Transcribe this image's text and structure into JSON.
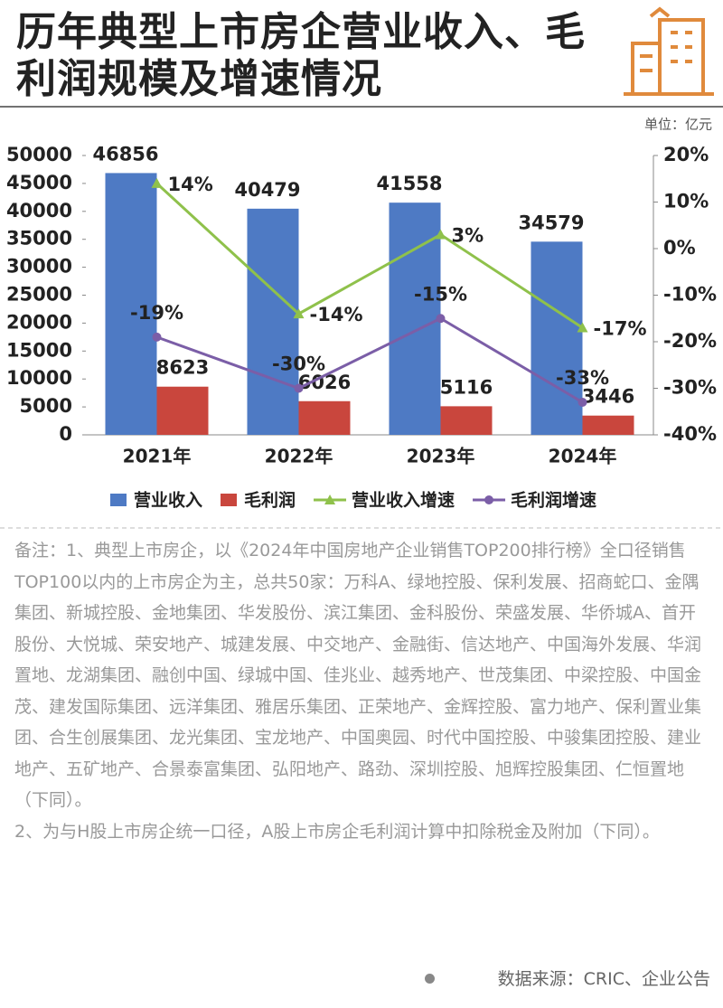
{
  "header": {
    "title": "历年典型上市房企营业收入、毛利润规模及增速情况",
    "unit": "单位：亿元"
  },
  "chart_data": {
    "type": "bar",
    "categories": [
      "2021年",
      "2022年",
      "2023年",
      "2024年"
    ],
    "series": [
      {
        "name": "营业收入",
        "color": "#4e7ac4",
        "type": "bar",
        "values": [
          46856,
          40479,
          41558,
          34579
        ]
      },
      {
        "name": "毛利润",
        "color": "#c9463d",
        "type": "bar",
        "values": [
          8623,
          6026,
          5116,
          3446
        ]
      },
      {
        "name": "营业收入增速",
        "color": "#8fc14b",
        "type": "line",
        "axis": "y2",
        "values": [
          14,
          -14,
          3,
          -17
        ],
        "value_labels": [
          "14%",
          "-14%",
          "3%",
          "-17%"
        ]
      },
      {
        "name": "毛利润增速",
        "color": "#7b5ea7",
        "type": "line",
        "axis": "y2",
        "values": [
          -19,
          -30,
          -15,
          -33
        ],
        "value_labels": [
          "-19%",
          "-30%",
          "-15%",
          "-33%"
        ]
      }
    ],
    "ylim": [
      0,
      50000
    ],
    "yticks": [
      0,
      5000,
      10000,
      15000,
      20000,
      25000,
      30000,
      35000,
      40000,
      45000,
      50000
    ],
    "y2lim": [
      -40,
      20
    ],
    "y2ticks": [
      {
        "value": -40,
        "label": "-40%"
      },
      {
        "value": -30,
        "label": "-30%"
      },
      {
        "value": -20,
        "label": "-20%"
      },
      {
        "value": -10,
        "label": "-10%"
      },
      {
        "value": 0,
        "label": "0%"
      },
      {
        "value": 10,
        "label": "10%"
      },
      {
        "value": 20,
        "label": "20%"
      }
    ],
    "legend": "bottom"
  },
  "notes": [
    "备注：1、典型上市房企，以《2024年中国房地产企业销售TOP200排行榜》全口径销售TOP100以内的上市房企为主，总共50家：万科A、绿地控股、保利发展、招商蛇口、金隅集团、新城控股、金地集团、华发股份、滨江集团、金科股份、荣盛发展、华侨城A、首开股份、大悦城、荣安地产、城建发展、中交地产、金融街、信达地产、中国海外发展、华润置地、龙湖集团、融创中国、绿城中国、佳兆业、越秀地产、世茂集团、中梁控股、中国金茂、建发国际集团、远洋集团、雅居乐集团、正荣地产、金辉控股、富力地产、保利置业集团、合生创展集团、龙光集团、宝龙地产、中国奥园、时代中国控股、中骏集团控股、建业地产、五矿地产、合景泰富集团、弘阳地产、路劲、深圳控股、旭辉控股集团、仁恒置地（下同）。",
    "2、为与H股上市房企统一口径，A股上市房企毛利润计算中扣除税金及附加（下同）。"
  ],
  "source": "数据来源：CRIC、企业公告"
}
